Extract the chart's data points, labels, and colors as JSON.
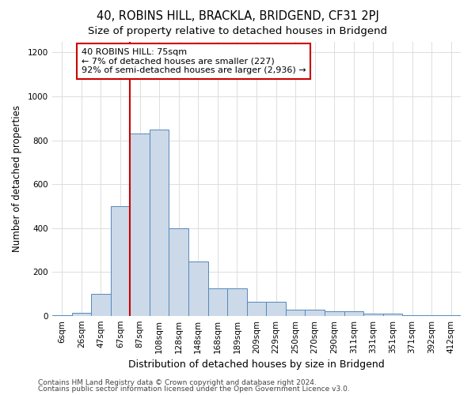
{
  "title1": "40, ROBINS HILL, BRACKLA, BRIDGEND, CF31 2PJ",
  "title2": "Size of property relative to detached houses in Bridgend",
  "xlabel": "Distribution of detached houses by size in Bridgend",
  "ylabel": "Number of detached properties",
  "bin_labels": [
    "6sqm",
    "26sqm",
    "47sqm",
    "67sqm",
    "87sqm",
    "108sqm",
    "128sqm",
    "148sqm",
    "168sqm",
    "189sqm",
    "209sqm",
    "229sqm",
    "250sqm",
    "270sqm",
    "290sqm",
    "311sqm",
    "331sqm",
    "351sqm",
    "371sqm",
    "392sqm",
    "412sqm"
  ],
  "bar_values": [
    5,
    15,
    100,
    500,
    830,
    850,
    400,
    250,
    125,
    125,
    65,
    65,
    30,
    30,
    20,
    20,
    10,
    10,
    5,
    5,
    2
  ],
  "bar_color": "#ccd9e8",
  "bar_edgecolor": "#5588bb",
  "vline_x": 4.0,
  "vline_color": "#cc0000",
  "annotation_text": "40 ROBINS HILL: 75sqm\n← 7% of detached houses are smaller (227)\n92% of semi-detached houses are larger (2,936) →",
  "annotation_box_color": "white",
  "annotation_box_edgecolor": "#cc0000",
  "ylim": [
    0,
    1250
  ],
  "yticks": [
    0,
    200,
    400,
    600,
    800,
    1000,
    1200
  ],
  "grid_color": "#dddddd",
  "background_color": "white",
  "footer1": "Contains HM Land Registry data © Crown copyright and database right 2024.",
  "footer2": "Contains public sector information licensed under the Open Government Licence v3.0.",
  "title1_fontsize": 10.5,
  "title2_fontsize": 9.5,
  "xlabel_fontsize": 9,
  "ylabel_fontsize": 8.5,
  "tick_fontsize": 7.5,
  "annotation_fontsize": 8,
  "footer_fontsize": 6.5
}
